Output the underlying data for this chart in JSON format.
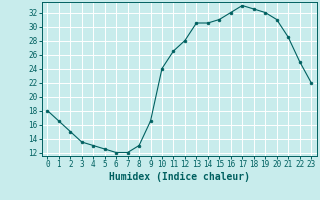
{
  "x": [
    0,
    1,
    2,
    3,
    4,
    5,
    6,
    7,
    8,
    9,
    10,
    11,
    12,
    13,
    14,
    15,
    16,
    17,
    18,
    19,
    20,
    21,
    22,
    23
  ],
  "y": [
    18,
    16.5,
    15,
    13.5,
    13,
    12.5,
    12,
    12,
    13,
    16.5,
    24,
    26.5,
    28,
    30.5,
    30.5,
    31,
    32,
    33,
    32.5,
    32,
    31,
    28.5,
    25,
    22
  ],
  "line_color": "#006060",
  "marker_color": "#006060",
  "bg_color": "#c8ecec",
  "grid_color": "#ffffff",
  "xlabel": "Humidex (Indice chaleur)",
  "ylim": [
    11.5,
    33.5
  ],
  "xlim": [
    -0.5,
    23.5
  ],
  "yticks": [
    12,
    14,
    16,
    18,
    20,
    22,
    24,
    26,
    28,
    30,
    32
  ],
  "xticks": [
    0,
    1,
    2,
    3,
    4,
    5,
    6,
    7,
    8,
    9,
    10,
    11,
    12,
    13,
    14,
    15,
    16,
    17,
    18,
    19,
    20,
    21,
    22,
    23
  ],
  "tick_fontsize": 5.5,
  "label_fontsize": 7.0
}
